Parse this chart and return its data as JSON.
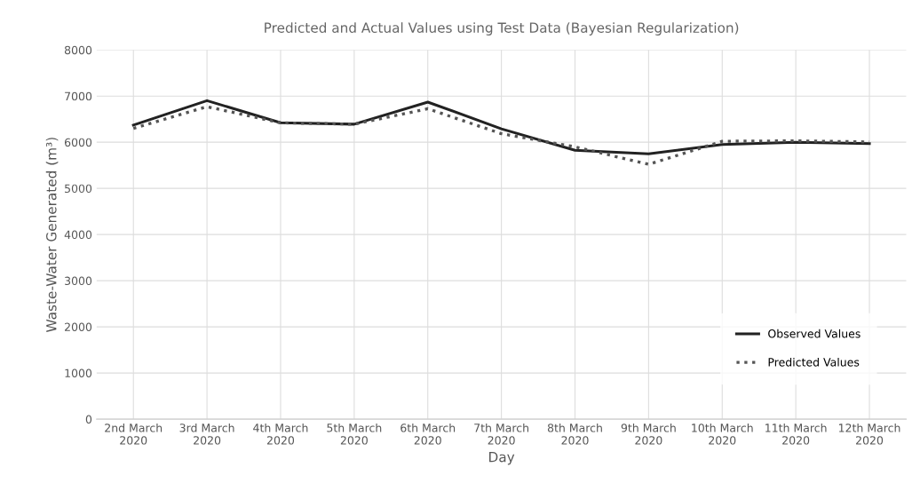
{
  "chart_data": {
    "type": "line",
    "title": "Predicted and Actual Values using Test Data (Bayesian Regularization)",
    "xlabel": "Day",
    "ylabel": "Waste-Water Generated (m³)",
    "categories": [
      "2nd March\n2020",
      "3rd March\n2020",
      "4th March\n2020",
      "5th March\n2020",
      "6th March\n2020",
      "7th March\n2020",
      "8th March\n2020",
      "9th March\n2020",
      "10th March\n2020",
      "11th March\n2020",
      "12th March\n2020"
    ],
    "series": [
      {
        "name": "Observed Values",
        "color": "#222222",
        "line_style": "solid",
        "values": [
          6370,
          6900,
          6420,
          6390,
          6870,
          6290,
          5825,
          5750,
          5950,
          6000,
          5970
        ]
      },
      {
        "name": "Predicted Values",
        "color": "#555555",
        "line_style": "dotted",
        "values": [
          6300,
          6770,
          6420,
          6390,
          6725,
          6185,
          5900,
          5520,
          6020,
          6030,
          6005
        ]
      }
    ],
    "ylim": [
      0,
      8000
    ],
    "yticks": [
      0,
      1000,
      2000,
      3000,
      4000,
      5000,
      6000,
      7000,
      8000
    ],
    "grid": true,
    "legend": "bottom right",
    "marker": "none"
  }
}
